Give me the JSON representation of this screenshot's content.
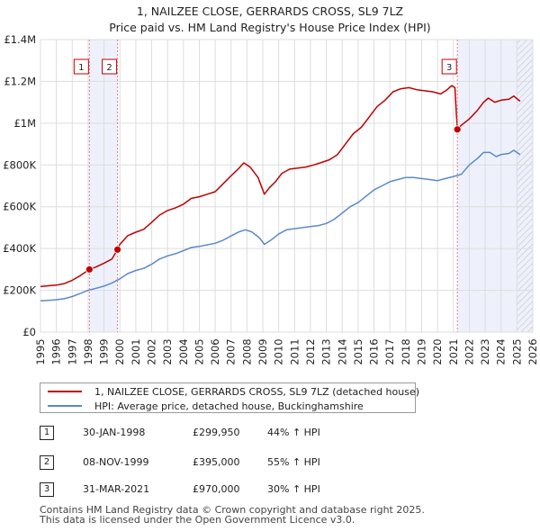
{
  "title": {
    "line1": "1, NAILZEE CLOSE, GERRARDS CROSS, SL9 7LZ",
    "line2": "Price paid vs. HM Land Registry's House Price Index (HPI)"
  },
  "colors": {
    "price_line": "#c00000",
    "hpi_line": "#5b8ac9",
    "shade": "#eef1fb",
    "grid": "#dddddd",
    "vline": "#e08080"
  },
  "chart_data": {
    "type": "line",
    "xlim": [
      1995,
      2026
    ],
    "ylim": [
      0,
      1400000
    ],
    "x_ticks": [
      1995,
      1996,
      1997,
      1998,
      1999,
      2000,
      2001,
      2002,
      2003,
      2004,
      2005,
      2006,
      2007,
      2008,
      2009,
      2010,
      2011,
      2012,
      2013,
      2014,
      2015,
      2016,
      2017,
      2018,
      2019,
      2020,
      2021,
      2022,
      2023,
      2024,
      2025,
      2026
    ],
    "y_ticks": [
      {
        "value": 0,
        "label": "£0"
      },
      {
        "value": 200000,
        "label": "£200K"
      },
      {
        "value": 400000,
        "label": "£400K"
      },
      {
        "value": 600000,
        "label": "£600K"
      },
      {
        "value": 800000,
        "label": "£800K"
      },
      {
        "value": 1000000,
        "label": "£1M"
      },
      {
        "value": 1200000,
        "label": "£1.2M"
      },
      {
        "value": 1400000,
        "label": "£1.4M"
      }
    ],
    "grid": true,
    "shaded_ranges": [
      [
        1998.08,
        1999.85
      ],
      [
        2021.25,
        2026
      ]
    ],
    "hatched_range": [
      2025.0,
      2026
    ],
    "series": [
      {
        "name": "1, NAILZEE CLOSE, GERRARDS CROSS, SL9 7LZ (detached house)",
        "color": "#c00000",
        "points": [
          [
            1995.0,
            218000
          ],
          [
            1995.5,
            222000
          ],
          [
            1996.0,
            225000
          ],
          [
            1996.5,
            232000
          ],
          [
            1997.0,
            248000
          ],
          [
            1997.5,
            270000
          ],
          [
            1998.08,
            299950
          ],
          [
            1998.5,
            312000
          ],
          [
            1999.0,
            330000
          ],
          [
            1999.5,
            350000
          ],
          [
            1999.85,
            395000
          ],
          [
            2000.0,
            420000
          ],
          [
            2000.5,
            462000
          ],
          [
            2001.0,
            478000
          ],
          [
            2001.5,
            492000
          ],
          [
            2002.0,
            525000
          ],
          [
            2002.5,
            560000
          ],
          [
            2003.0,
            582000
          ],
          [
            2003.5,
            595000
          ],
          [
            2004.0,
            612000
          ],
          [
            2004.5,
            640000
          ],
          [
            2005.0,
            648000
          ],
          [
            2005.5,
            660000
          ],
          [
            2006.0,
            672000
          ],
          [
            2006.5,
            710000
          ],
          [
            2007.0,
            748000
          ],
          [
            2007.5,
            785000
          ],
          [
            2007.8,
            810000
          ],
          [
            2008.2,
            790000
          ],
          [
            2008.7,
            740000
          ],
          [
            2009.1,
            660000
          ],
          [
            2009.4,
            690000
          ],
          [
            2009.8,
            720000
          ],
          [
            2010.2,
            760000
          ],
          [
            2010.7,
            780000
          ],
          [
            2011.2,
            785000
          ],
          [
            2011.7,
            790000
          ],
          [
            2012.2,
            800000
          ],
          [
            2012.7,
            812000
          ],
          [
            2013.2,
            825000
          ],
          [
            2013.7,
            850000
          ],
          [
            2014.2,
            900000
          ],
          [
            2014.7,
            950000
          ],
          [
            2015.2,
            980000
          ],
          [
            2015.7,
            1030000
          ],
          [
            2016.2,
            1080000
          ],
          [
            2016.7,
            1110000
          ],
          [
            2017.2,
            1150000
          ],
          [
            2017.7,
            1165000
          ],
          [
            2018.2,
            1170000
          ],
          [
            2018.7,
            1160000
          ],
          [
            2019.2,
            1155000
          ],
          [
            2019.7,
            1150000
          ],
          [
            2020.2,
            1140000
          ],
          [
            2020.6,
            1160000
          ],
          [
            2020.9,
            1180000
          ],
          [
            2021.1,
            1170000
          ],
          [
            2021.18,
            1050000
          ],
          [
            2021.25,
            970000
          ],
          [
            2021.5,
            990000
          ],
          [
            2022.0,
            1020000
          ],
          [
            2022.5,
            1060000
          ],
          [
            2022.9,
            1100000
          ],
          [
            2023.2,
            1120000
          ],
          [
            2023.6,
            1100000
          ],
          [
            2024.0,
            1110000
          ],
          [
            2024.5,
            1115000
          ],
          [
            2024.8,
            1130000
          ],
          [
            2025.2,
            1105000
          ]
        ]
      },
      {
        "name": "HPI: Average price, detached house, Buckinghamshire",
        "color": "#5b8ac9",
        "points": [
          [
            1995.0,
            150000
          ],
          [
            1995.5,
            152000
          ],
          [
            1996.0,
            155000
          ],
          [
            1996.5,
            160000
          ],
          [
            1997.0,
            170000
          ],
          [
            1997.5,
            185000
          ],
          [
            1998.0,
            200000
          ],
          [
            1998.5,
            210000
          ],
          [
            1999.0,
            220000
          ],
          [
            1999.5,
            235000
          ],
          [
            2000.0,
            255000
          ],
          [
            2000.5,
            280000
          ],
          [
            2001.0,
            295000
          ],
          [
            2001.5,
            305000
          ],
          [
            2002.0,
            325000
          ],
          [
            2002.5,
            350000
          ],
          [
            2003.0,
            365000
          ],
          [
            2003.5,
            375000
          ],
          [
            2004.0,
            390000
          ],
          [
            2004.5,
            405000
          ],
          [
            2005.0,
            410000
          ],
          [
            2005.5,
            418000
          ],
          [
            2006.0,
            425000
          ],
          [
            2006.5,
            440000
          ],
          [
            2007.0,
            460000
          ],
          [
            2007.5,
            480000
          ],
          [
            2007.9,
            490000
          ],
          [
            2008.3,
            480000
          ],
          [
            2008.8,
            450000
          ],
          [
            2009.1,
            420000
          ],
          [
            2009.5,
            440000
          ],
          [
            2010.0,
            470000
          ],
          [
            2010.5,
            490000
          ],
          [
            2011.0,
            495000
          ],
          [
            2011.5,
            500000
          ],
          [
            2012.0,
            505000
          ],
          [
            2012.5,
            510000
          ],
          [
            2013.0,
            520000
          ],
          [
            2013.5,
            540000
          ],
          [
            2014.0,
            570000
          ],
          [
            2014.5,
            600000
          ],
          [
            2015.0,
            620000
          ],
          [
            2015.5,
            650000
          ],
          [
            2016.0,
            680000
          ],
          [
            2016.5,
            700000
          ],
          [
            2017.0,
            720000
          ],
          [
            2017.5,
            730000
          ],
          [
            2018.0,
            740000
          ],
          [
            2018.5,
            740000
          ],
          [
            2019.0,
            735000
          ],
          [
            2019.5,
            730000
          ],
          [
            2020.0,
            725000
          ],
          [
            2020.5,
            735000
          ],
          [
            2021.0,
            745000
          ],
          [
            2021.5,
            755000
          ],
          [
            2022.0,
            800000
          ],
          [
            2022.5,
            830000
          ],
          [
            2022.9,
            860000
          ],
          [
            2023.3,
            860000
          ],
          [
            2023.7,
            840000
          ],
          [
            2024.0,
            850000
          ],
          [
            2024.5,
            855000
          ],
          [
            2024.8,
            870000
          ],
          [
            2025.2,
            850000
          ]
        ]
      }
    ],
    "sales": [
      {
        "id": "1",
        "x": 1998.08,
        "price": 299950
      },
      {
        "id": "2",
        "x": 1999.85,
        "price": 395000
      },
      {
        "id": "3",
        "x": 2021.25,
        "price": 970000
      }
    ]
  },
  "legend": {
    "property": "1, NAILZEE CLOSE, GERRARDS CROSS, SL9 7LZ (detached house)",
    "hpi": "HPI: Average price, detached house, Buckinghamshire"
  },
  "sales_table": [
    {
      "num": "1",
      "date": "30-JAN-1998",
      "price": "£299,950",
      "hpi": "44% ↑ HPI"
    },
    {
      "num": "2",
      "date": "08-NOV-1999",
      "price": "£395,000",
      "hpi": "55% ↑ HPI"
    },
    {
      "num": "3",
      "date": "31-MAR-2021",
      "price": "£970,000",
      "hpi": "30% ↑ HPI"
    }
  ],
  "footer": {
    "line1": "Contains HM Land Registry data © Crown copyright and database right 2025.",
    "line2": "This data is licensed under the Open Government Licence v3.0."
  }
}
